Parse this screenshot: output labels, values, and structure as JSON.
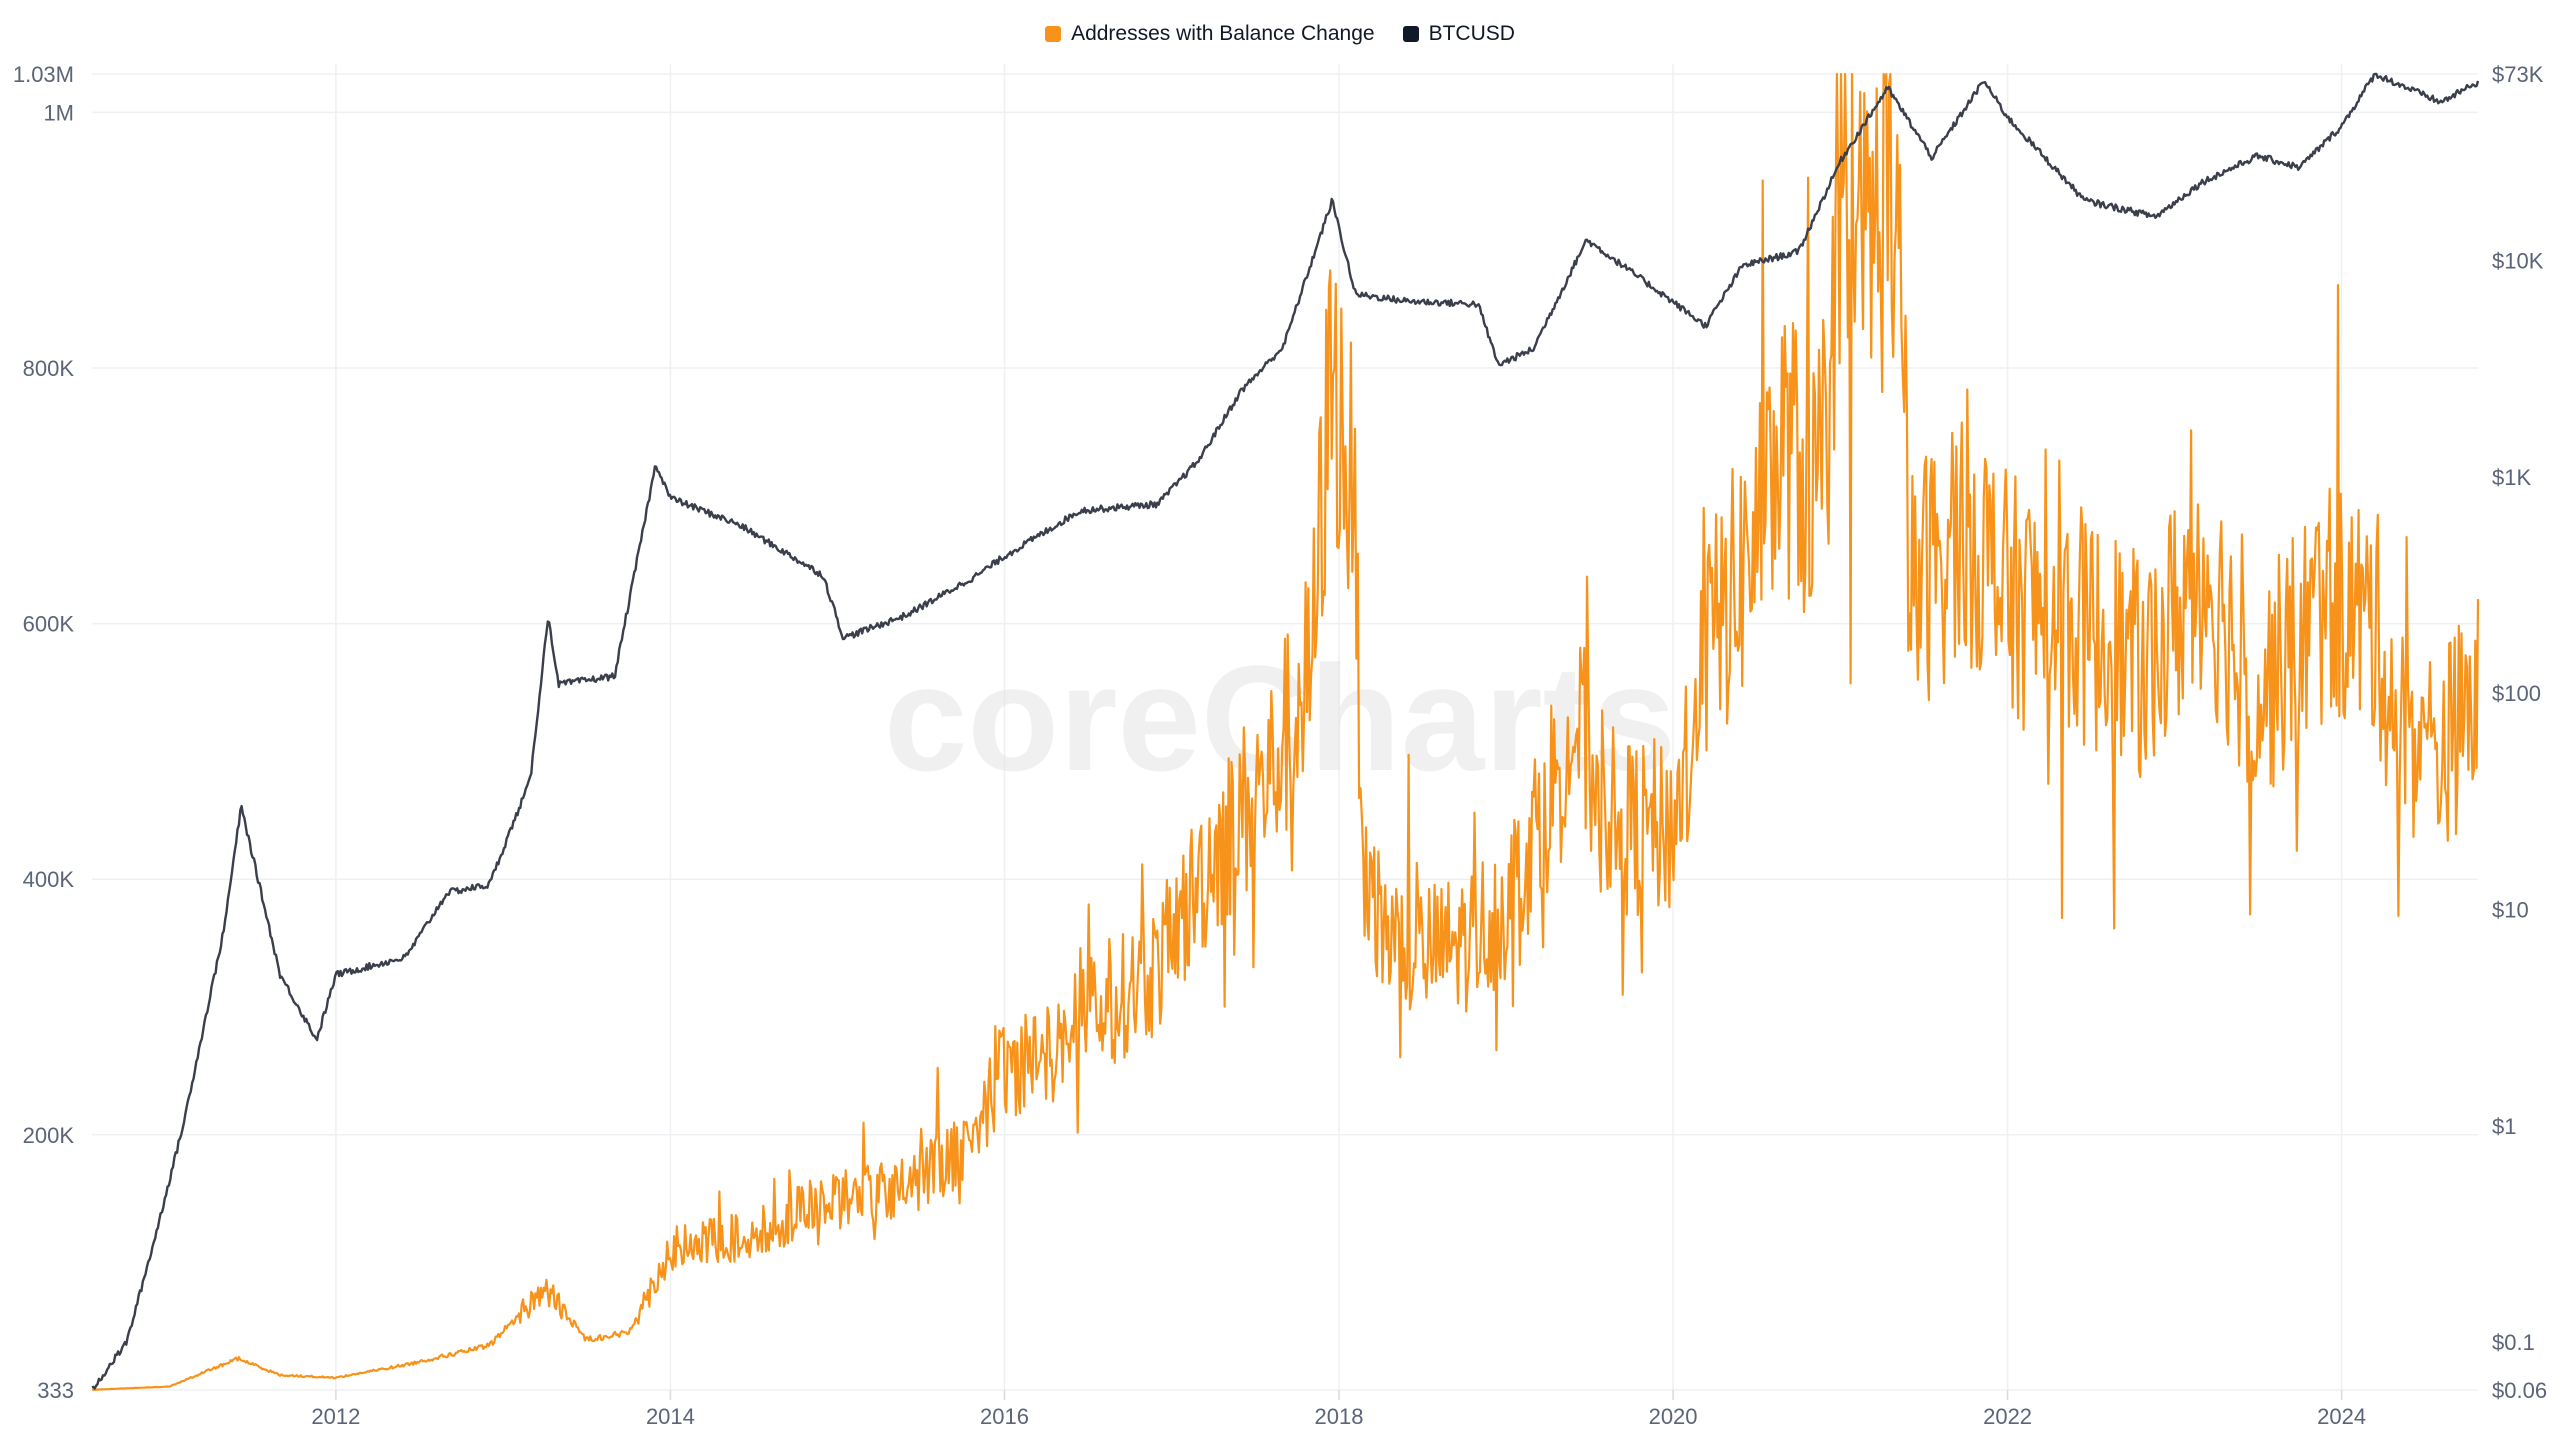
{
  "watermark": "coreCharts",
  "legend": [
    {
      "label": "Addresses with Balance Change",
      "color": "#f7931a"
    },
    {
      "label": "BTCUSD",
      "color": "#111827"
    }
  ],
  "chart_data": {
    "type": "line",
    "x_range": [
      "2010-07-17",
      "2024-10-25"
    ],
    "x_ticks": [
      "2012",
      "2014",
      "2016",
      "2018",
      "2020",
      "2022",
      "2024"
    ],
    "grid": true,
    "legend_position": "top-center",
    "left_axis": {
      "scale": "linear",
      "range": [
        333,
        1030000
      ],
      "ticks": [
        {
          "value": 333,
          "label": "333"
        },
        {
          "value": 200000,
          "label": "200K"
        },
        {
          "value": 400000,
          "label": "400K"
        },
        {
          "value": 600000,
          "label": "600K"
        },
        {
          "value": 800000,
          "label": "800K"
        },
        {
          "value": 1000000,
          "label": "1M"
        },
        {
          "value": 1030000,
          "label": "1.03M"
        }
      ]
    },
    "right_axis": {
      "scale": "log",
      "range": [
        0.06,
        73000
      ],
      "ticks": [
        {
          "value": 0.06,
          "label": "$0.06"
        },
        {
          "value": 0.1,
          "label": "$0.1"
        },
        {
          "value": 1,
          "label": "$1"
        },
        {
          "value": 10,
          "label": "$10"
        },
        {
          "value": 100,
          "label": "$100"
        },
        {
          "value": 1000,
          "label": "$1K"
        },
        {
          "value": 10000,
          "label": "$10K"
        },
        {
          "value": 73000,
          "label": "$73K"
        }
      ]
    },
    "series": [
      {
        "name": "Addresses with Balance Change",
        "axis": "left",
        "color": "#f7931a",
        "points": [
          [
            "2010-07-17",
            500
          ],
          [
            "2011-01-01",
            3000
          ],
          [
            "2011-06-01",
            25000
          ],
          [
            "2011-09-01",
            12000
          ],
          [
            "2012-01-01",
            10000
          ],
          [
            "2012-06-01",
            20000
          ],
          [
            "2012-12-01",
            35000
          ],
          [
            "2013-04-01",
            80000
          ],
          [
            "2013-07-01",
            40000
          ],
          [
            "2013-10-01",
            45000
          ],
          [
            "2014-01-01",
            110000
          ],
          [
            "2014-06-01",
            120000
          ],
          [
            "2015-01-01",
            150000
          ],
          [
            "2015-06-01",
            160000
          ],
          [
            "2015-10-01",
            190000
          ],
          [
            "2016-01-01",
            250000
          ],
          [
            "2016-06-01",
            280000
          ],
          [
            "2016-12-01",
            330000
          ],
          [
            "2017-04-01",
            420000
          ],
          [
            "2017-08-01",
            480000
          ],
          [
            "2017-11-01",
            560000
          ],
          [
            "2017-12-15",
            800000
          ],
          [
            "2018-02-01",
            700000
          ],
          [
            "2018-03-01",
            380000
          ],
          [
            "2018-06-01",
            340000
          ],
          [
            "2018-10-01",
            350000
          ],
          [
            "2019-01-01",
            380000
          ],
          [
            "2019-06-01",
            520000
          ],
          [
            "2019-09-01",
            440000
          ],
          [
            "2020-01-01",
            440000
          ],
          [
            "2020-03-15",
            580000
          ],
          [
            "2020-06-01",
            640000
          ],
          [
            "2020-09-01",
            740000
          ],
          [
            "2020-11-01",
            700000
          ],
          [
            "2021-01-15",
            870000
          ],
          [
            "2021-05-01",
            940000
          ],
          [
            "2021-06-01",
            620000
          ],
          [
            "2021-10-01",
            680000
          ],
          [
            "2022-01-01",
            620000
          ],
          [
            "2022-06-01",
            600000
          ],
          [
            "2022-11-01",
            560000
          ],
          [
            "2023-03-01",
            650000
          ],
          [
            "2023-07-01",
            540000
          ],
          [
            "2023-12-01",
            620000
          ],
          [
            "2024-03-15",
            600000
          ],
          [
            "2024-05-01",
            520000
          ],
          [
            "2024-08-01",
            500000
          ],
          [
            "2024-10-25",
            540000
          ]
        ]
      },
      {
        "name": "BTCUSD",
        "axis": "right",
        "color": "#111827",
        "points": [
          [
            "2010-07-17",
            0.06
          ],
          [
            "2010-10-01",
            0.1
          ],
          [
            "2010-12-01",
            0.3
          ],
          [
            "2011-02-01",
            1
          ],
          [
            "2011-05-01",
            8
          ],
          [
            "2011-06-08",
            30
          ],
          [
            "2011-09-01",
            5
          ],
          [
            "2011-11-20",
            2.5
          ],
          [
            "2012-01-01",
            5
          ],
          [
            "2012-06-01",
            6
          ],
          [
            "2012-09-01",
            12
          ],
          [
            "2012-12-01",
            13
          ],
          [
            "2013-03-01",
            40
          ],
          [
            "2013-04-09",
            230
          ],
          [
            "2013-05-01",
            110
          ],
          [
            "2013-09-01",
            120
          ],
          [
            "2013-11-30",
            1150
          ],
          [
            "2014-01-01",
            800
          ],
          [
            "2014-06-01",
            600
          ],
          [
            "2014-12-01",
            350
          ],
          [
            "2015-01-14",
            180
          ],
          [
            "2015-06-01",
            230
          ],
          [
            "2015-11-01",
            350
          ],
          [
            "2016-01-01",
            430
          ],
          [
            "2016-06-15",
            700
          ],
          [
            "2016-12-01",
            750
          ],
          [
            "2017-03-01",
            1200
          ],
          [
            "2017-06-01",
            2500
          ],
          [
            "2017-09-01",
            4000
          ],
          [
            "2017-12-17",
            19000
          ],
          [
            "2018-02-06",
            7000
          ],
          [
            "2018-06-01",
            6500
          ],
          [
            "2018-11-01",
            6300
          ],
          [
            "2018-12-15",
            3300
          ],
          [
            "2019-03-01",
            3900
          ],
          [
            "2019-06-26",
            12500
          ],
          [
            "2019-12-01",
            7200
          ],
          [
            "2020-03-12",
            5000
          ],
          [
            "2020-06-01",
            9500
          ],
          [
            "2020-10-01",
            11000
          ],
          [
            "2021-01-01",
            29000
          ],
          [
            "2021-04-14",
            63000
          ],
          [
            "2021-07-20",
            30000
          ],
          [
            "2021-11-10",
            68000
          ],
          [
            "2022-01-01",
            46000
          ],
          [
            "2022-06-18",
            19000
          ],
          [
            "2022-11-21",
            16000
          ],
          [
            "2023-03-01",
            23000
          ],
          [
            "2023-07-01",
            30500
          ],
          [
            "2023-10-01",
            27000
          ],
          [
            "2024-01-01",
            42000
          ],
          [
            "2024-03-14",
            73000
          ],
          [
            "2024-08-05",
            54000
          ],
          [
            "2024-10-25",
            67000
          ]
        ]
      }
    ]
  }
}
